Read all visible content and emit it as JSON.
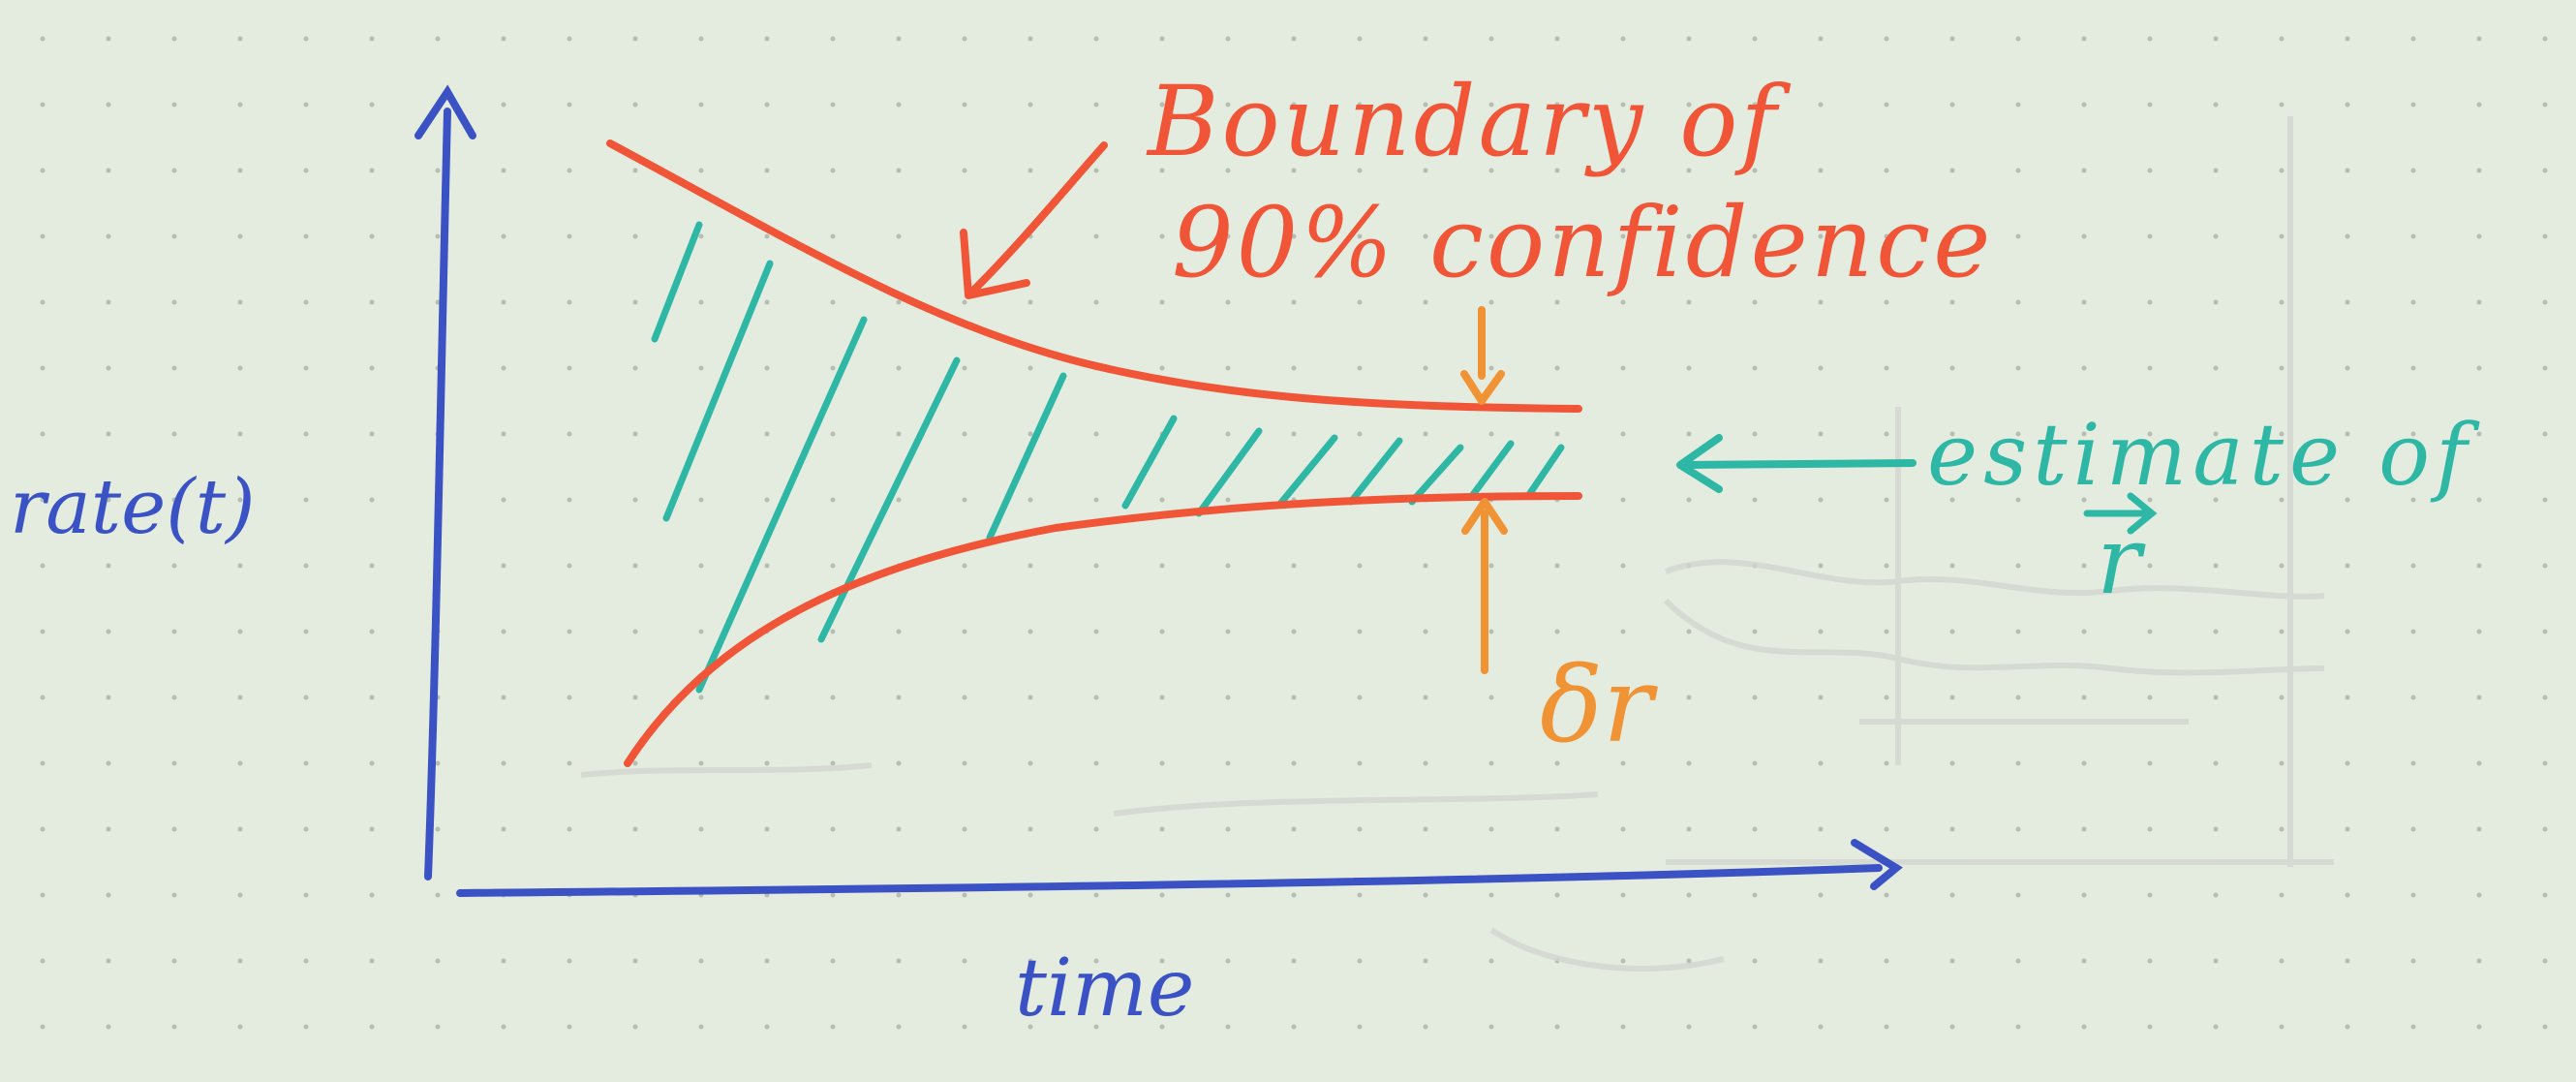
{
  "diagram": {
    "y_axis_label": "rate(t)",
    "x_axis_label": "time",
    "boundary_label_line1": "Boundary of",
    "boundary_label_line2": "90% confidence",
    "estimate_label_line1": "estimate of",
    "estimate_label_symbol": "r",
    "delta_label": "δr",
    "colors": {
      "paper": "#e4ece0",
      "paper_dots": "#b7bdb3",
      "axes": "#3b52c4",
      "boundary": "#ef5536",
      "hatch": "#2fb7a6",
      "delta_r": "#f09335",
      "ghost_bleed": "#cfd3cd"
    }
  }
}
